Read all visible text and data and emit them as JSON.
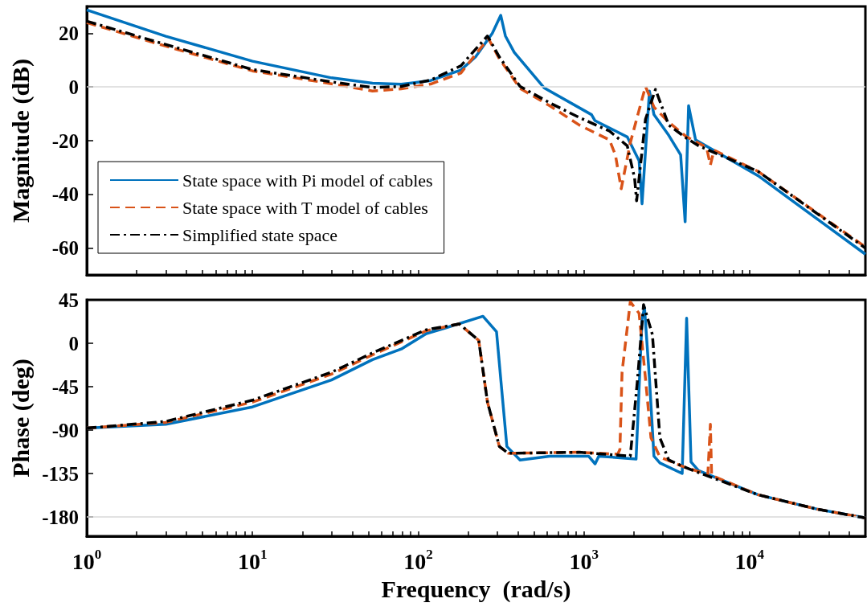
{
  "chart_data": [
    {
      "type": "line",
      "ylabel": "Magnitude (dB)",
      "xlim": [
        1,
        50000
      ],
      "ylim": [
        -70,
        30
      ],
      "yticks": [
        -60,
        -40,
        -20,
        0,
        20
      ],
      "log": "x",
      "tick_labels": "y",
      "legend": "bottom left",
      "xticks": [
        {
          "value": 1,
          "label": null
        },
        {
          "value": 2,
          "label": null
        },
        {
          "value": 3,
          "label": null
        },
        {
          "value": 4,
          "label": null
        },
        {
          "value": 5,
          "label": null
        },
        {
          "value": 6,
          "label": null
        },
        {
          "value": 7,
          "label": null
        },
        {
          "value": 8,
          "label": null
        },
        {
          "value": 9,
          "label": null
        },
        {
          "value": 10,
          "label": null
        },
        {
          "value": 20,
          "label": null
        },
        {
          "value": 30,
          "label": null
        },
        {
          "value": 40,
          "label": null
        },
        {
          "value": 50,
          "label": null
        },
        {
          "value": 60,
          "label": null
        },
        {
          "value": 70,
          "label": null
        },
        {
          "value": 80,
          "label": null
        },
        {
          "value": 90,
          "label": null
        },
        {
          "value": 100,
          "label": null
        },
        {
          "value": 200,
          "label": null
        },
        {
          "value": 300,
          "label": null
        },
        {
          "value": 400,
          "label": null
        },
        {
          "value": 500,
          "label": null
        },
        {
          "value": 600,
          "label": null
        },
        {
          "value": 700,
          "label": null
        },
        {
          "value": 800,
          "label": null
        },
        {
          "value": 900,
          "label": null
        },
        {
          "value": 1000,
          "label": null
        },
        {
          "value": 2000,
          "label": null
        },
        {
          "value": 3000,
          "label": null
        },
        {
          "value": 4000,
          "label": null
        },
        {
          "value": 5000,
          "label": null
        },
        {
          "value": 6000,
          "label": null
        },
        {
          "value": 7000,
          "label": null
        },
        {
          "value": 8000,
          "label": null
        },
        {
          "value": 9000,
          "label": null
        },
        {
          "value": 10000,
          "label": null
        },
        {
          "value": 20000,
          "label": null
        },
        {
          "value": 30000,
          "label": null
        },
        {
          "value": 40000,
          "label": null
        }
      ],
      "ref_lines": [
        {
          "axis": "y",
          "value": 0,
          "color": "#d9d9d9"
        }
      ],
      "series": [
        {
          "name": "State space with Pi model of cables",
          "color": "#0072bd",
          "line_style": "solid",
          "x": [
            1,
            3,
            10,
            30,
            53,
            79,
            119,
            181,
            222,
            280,
            315,
            336,
            380,
            575,
            1112,
            1165,
            1827,
            2154,
            2244,
            2488,
            2648,
            3252,
            3837,
            4084,
            4285,
            4722,
            11230,
            50000
          ],
          "values": [
            28.7,
            18.9,
            9.6,
            3.4,
            1.4,
            1.0,
            2.4,
            6.3,
            11.2,
            20,
            26.7,
            19,
            12.9,
            -0.3,
            -10.3,
            -12.5,
            -18.6,
            -27.5,
            -43.5,
            -1.5,
            -10.3,
            -18,
            -25.3,
            -50.2,
            -7,
            -19.7,
            -33,
            -62.3
          ]
        },
        {
          "name": "State space with T model of cables",
          "color": "#d95319",
          "line_style": "dashed",
          "x": [
            1,
            3,
            10,
            30,
            53,
            79,
            119,
            181,
            265,
            309,
            412,
            622,
            940,
            1426,
            1550,
            1680,
            1906,
            2130,
            2355,
            2648,
            3252,
            4170,
            5500,
            5800,
            6100,
            11230,
            50000
          ],
          "values": [
            24,
            15.2,
            6,
            1.2,
            -1.5,
            -0.7,
            1.1,
            5.2,
            18.1,
            10.5,
            -0.5,
            -7,
            -14.2,
            -19.7,
            -25.3,
            -37.9,
            -20.8,
            -9.7,
            0.2,
            -7.5,
            -13.1,
            -18.6,
            -22.5,
            -29.1,
            -23.5,
            -31.4,
            -59.6
          ]
        },
        {
          "name": "Simplified state space",
          "color": "#000000",
          "line_style": "dashdot",
          "x": [
            1,
            3,
            10,
            30,
            53,
            79,
            119,
            181,
            262,
            309,
            412,
            622,
            940,
            1426,
            1827,
            2024,
            2081,
            2355,
            2704,
            3252,
            4170,
            4920,
            11230,
            50000
          ],
          "values": [
            24.5,
            15.8,
            6.5,
            1.9,
            -0.2,
            0.2,
            2.6,
            7.9,
            19.0,
            11.2,
            0.2,
            -5.9,
            -11.4,
            -16.4,
            -21.9,
            -34,
            -42.4,
            -12,
            -0.9,
            -14.2,
            -19.1,
            -21.9,
            -31.4,
            -60
          ]
        }
      ]
    },
    {
      "type": "line",
      "xlabel": "Frequency  (rad/s)",
      "ylabel": "Phase (deg)",
      "xlim": [
        1,
        50000
      ],
      "ylim": [
        -200,
        45
      ],
      "yticks": [
        -180,
        -135,
        -90,
        -45,
        0,
        45
      ],
      "log": "x",
      "xticks": [
        {
          "value": 1,
          "label": "10$^{0}$"
        },
        {
          "value": 2,
          "label": null
        },
        {
          "value": 3,
          "label": null
        },
        {
          "value": 4,
          "label": null
        },
        {
          "value": 5,
          "label": null
        },
        {
          "value": 6,
          "label": null
        },
        {
          "value": 7,
          "label": null
        },
        {
          "value": 8,
          "label": null
        },
        {
          "value": 9,
          "label": null
        },
        {
          "value": 10,
          "label": "10$^{1}$"
        },
        {
          "value": 20,
          "label": null
        },
        {
          "value": 30,
          "label": null
        },
        {
          "value": 40,
          "label": null
        },
        {
          "value": 50,
          "label": null
        },
        {
          "value": 60,
          "label": null
        },
        {
          "value": 70,
          "label": null
        },
        {
          "value": 80,
          "label": null
        },
        {
          "value": 90,
          "label": null
        },
        {
          "value": 100,
          "label": "10$^{2}$"
        },
        {
          "value": 200,
          "label": null
        },
        {
          "value": 300,
          "label": null
        },
        {
          "value": 400,
          "label": null
        },
        {
          "value": 500,
          "label": null
        },
        {
          "value": 600,
          "label": null
        },
        {
          "value": 700,
          "label": null
        },
        {
          "value": 800,
          "label": null
        },
        {
          "value": 900,
          "label": null
        },
        {
          "value": 1000,
          "label": "10$^{3}$"
        },
        {
          "value": 2000,
          "label": null
        },
        {
          "value": 3000,
          "label": null
        },
        {
          "value": 4000,
          "label": null
        },
        {
          "value": 5000,
          "label": null
        },
        {
          "value": 6000,
          "label": null
        },
        {
          "value": 7000,
          "label": null
        },
        {
          "value": 8000,
          "label": null
        },
        {
          "value": 9000,
          "label": null
        },
        {
          "value": 10000,
          "label": "10$^{4}$"
        },
        {
          "value": 20000,
          "label": null
        },
        {
          "value": 30000,
          "label": null
        },
        {
          "value": 40000,
          "label": null
        }
      ],
      "ref_lines": [
        {
          "axis": "y",
          "value": -180,
          "color": "#d9d9d9"
        }
      ],
      "series": [
        {
          "color": "#0072bd",
          "line_style": "solid",
          "x": [
            1,
            3,
            10,
            30,
            53,
            79,
            112,
            147,
            246,
            297,
            315,
            343,
            412,
            622,
            1067,
            1169,
            1230,
            2066,
            2244,
            2322,
            2488,
            2648,
            2876,
            3920,
            4170,
            4433,
            4920,
            11230,
            25650,
            50000
          ],
          "values": [
            -88,
            -84,
            -66,
            -38,
            -17,
            -6,
            10,
            16,
            28,
            12,
            -37,
            -107,
            -121,
            -117,
            -117,
            -125,
            -117,
            -120,
            25,
            37,
            -37,
            -117,
            -124,
            -135,
            26,
            -123,
            -132,
            -157,
            -172,
            -181
          ]
        },
        {
          "color": "#d95319",
          "line_style": "dashed",
          "x": [
            1,
            3,
            10,
            30,
            53,
            112,
            177,
            232,
            262,
            309,
            350,
            940,
            1600,
            1650,
            1700,
            1906,
            2154,
            2355,
            2541,
            2876,
            4000,
            5600,
            5800,
            5900,
            11230,
            25650,
            50000
          ],
          "values": [
            -88,
            -82,
            -61,
            -32,
            -12,
            13,
            20,
            3,
            -61,
            -107,
            -114,
            -113,
            -115,
            -110,
            -30,
            43,
            31,
            -37,
            -98,
            -118,
            -128,
            -136,
            -84,
            -137,
            -157,
            -172,
            -181
          ]
        },
        {
          "color": "#000000",
          "line_style": "dashdot",
          "x": [
            1,
            3,
            10,
            30,
            53,
            112,
            177,
            232,
            262,
            309,
            350,
            940,
            1906,
            2109,
            2292,
            2592,
            2876,
            3252,
            4000,
            4920,
            11230,
            25650,
            50000
          ],
          "values": [
            -88,
            -81,
            -59,
            -30,
            -10,
            14,
            20,
            3,
            -61,
            -107,
            -114,
            -113,
            -117,
            -37,
            40,
            9,
            -98,
            -121,
            -128,
            -134,
            -157,
            -172,
            -181
          ]
        }
      ]
    }
  ]
}
